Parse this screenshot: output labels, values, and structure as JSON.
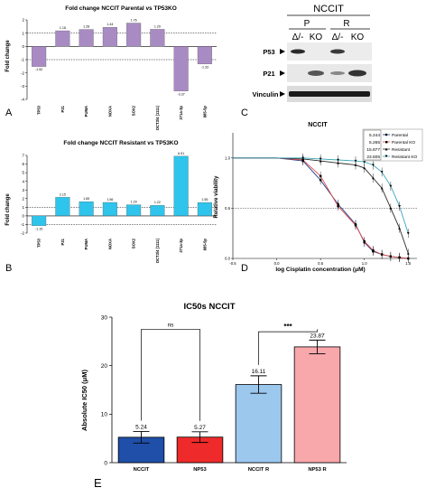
{
  "panels": {
    "A": "A",
    "B": "B",
    "C": "C",
    "D": "D",
    "E": "E"
  },
  "colors": {
    "purple": "#a98bc4",
    "cyan": "#2ec4ec",
    "parental": "#1f3b8c",
    "parental_ko": "#e04a4a",
    "resistant": "#2a2a2a",
    "resistant_ko": "#3aa7b8",
    "bar_nccit": "#1f4fa8",
    "bar_np53": "#ee2a2a",
    "bar_nccit_r": "#9cc8ee",
    "bar_np53_r": "#f8a7ab"
  },
  "blot": {
    "title": "NCCIT",
    "groups": [
      "P",
      "R"
    ],
    "lanes": [
      "Δ/-",
      "KO",
      "Δ/-",
      "KO"
    ],
    "rows": [
      "P53",
      "P21",
      "Vinculin"
    ]
  },
  "chart_data": [
    {
      "id": "A",
      "type": "bar",
      "title": "Fold change NCCIT Parental vs TP53KO",
      "ylabel": "Fold change",
      "ylim": [
        -4,
        2
      ],
      "yticks": [
        "-4",
        "-3",
        "-2",
        "-1",
        "0",
        "1",
        "2"
      ],
      "reference_lines": [
        1,
        -1
      ],
      "categories": [
        "TP53",
        "P21",
        "PUMA",
        "NOXA",
        "SOX2",
        "OCT3/4 (1111)",
        "371a-3p",
        "885-5p"
      ],
      "values": [
        -1.52,
        1.18,
        1.28,
        1.44,
        1.76,
        1.29,
        -3.37,
        -1.33
      ],
      "value_labels": [
        "-1.52",
        "1.18",
        "1.28",
        "1.44",
        "1.76",
        "1.29",
        "-3.37",
        "-1.33"
      ]
    },
    {
      "id": "B",
      "type": "bar",
      "title": "Fold change NCCIT Resistant vs TP53KO",
      "ylabel": "Fold change",
      "ylim": [
        -2,
        7
      ],
      "yticks": [
        "-2",
        "-1",
        "0",
        "1",
        "2",
        "3",
        "4",
        "5",
        "6",
        "7"
      ],
      "reference_lines": [
        1,
        -1
      ],
      "categories": [
        "TP53",
        "P21",
        "PUMA",
        "NOXA",
        "SOX2",
        "OCT3/4 (1111)",
        "371a-3p",
        "885-5p"
      ],
      "values": [
        -1.15,
        2.15,
        1.65,
        1.56,
        1.29,
        1.22,
        6.91,
        1.55
      ],
      "value_labels": [
        "-1.15",
        "2.15",
        "1.65",
        "1.56",
        "1.29",
        "1.22",
        "6.91",
        "1.55"
      ]
    },
    {
      "id": "D",
      "type": "line",
      "title": "NCCIT",
      "xlabel": "log Cisplatin concentration (μM)",
      "ylabel": "Relative viability",
      "xlim": [
        -0.5,
        1.6
      ],
      "ylim": [
        0,
        1.25
      ],
      "xticks": [
        "-0.5",
        "0.0",
        "0.5",
        "1.0",
        "1.5"
      ],
      "yticks": [
        "0.0",
        "0.5",
        "1.0"
      ],
      "reference_line": 0.5,
      "series": [
        {
          "name": "Parental",
          "ic50": "5.244",
          "x": [
            0.0,
            0.3,
            0.5,
            0.7,
            0.9,
            1.0,
            1.1,
            1.2,
            1.3,
            1.4,
            1.5
          ],
          "y": [
            1.0,
            0.97,
            0.78,
            0.54,
            0.34,
            0.16,
            0.07,
            0.04,
            0.02,
            0.01,
            0.0
          ]
        },
        {
          "name": "Parental KO",
          "ic50": "5.265",
          "x": [
            0.0,
            0.3,
            0.5,
            0.7,
            0.9,
            1.0,
            1.1,
            1.2,
            1.3,
            1.4,
            1.5
          ],
          "y": [
            1.0,
            0.98,
            0.82,
            0.52,
            0.33,
            0.17,
            0.08,
            0.04,
            0.02,
            0.01,
            0.0
          ]
        },
        {
          "name": "Resistant",
          "ic50": "15.877",
          "x": [
            0.0,
            0.3,
            0.5,
            0.7,
            0.9,
            1.0,
            1.1,
            1.2,
            1.3,
            1.4,
            1.5
          ],
          "y": [
            1.0,
            0.99,
            0.97,
            0.95,
            0.93,
            0.9,
            0.8,
            0.7,
            0.5,
            0.3,
            0.05
          ]
        },
        {
          "name": "Resistant KO",
          "ic50": "23.605",
          "x": [
            0.0,
            0.3,
            0.5,
            0.7,
            0.9,
            1.0,
            1.1,
            1.2,
            1.3,
            1.4,
            1.5
          ],
          "y": [
            1.0,
            1.0,
            0.99,
            0.98,
            0.97,
            0.96,
            0.93,
            0.86,
            0.72,
            0.52,
            0.25
          ]
        }
      ]
    },
    {
      "id": "E",
      "type": "bar",
      "title": "IC50s NCCIT",
      "ylabel": "Absolute IC50 (μM)",
      "ylim": [
        0,
        30
      ],
      "yticks": [
        "0",
        "10",
        "20",
        "30"
      ],
      "categories": [
        "NCCIT",
        "NP53",
        "NCCIT R",
        "NP53 R"
      ],
      "values": [
        5.24,
        5.27,
        16.11,
        23.87
      ],
      "errors": [
        1.2,
        1.1,
        1.8,
        1.4
      ],
      "value_labels": [
        "5.24",
        "5.27",
        "16.11",
        "23.87"
      ],
      "significance": [
        {
          "pair": [
            0,
            1
          ],
          "label": "ns"
        },
        {
          "pair": [
            2,
            3
          ],
          "label": "***"
        }
      ]
    }
  ]
}
